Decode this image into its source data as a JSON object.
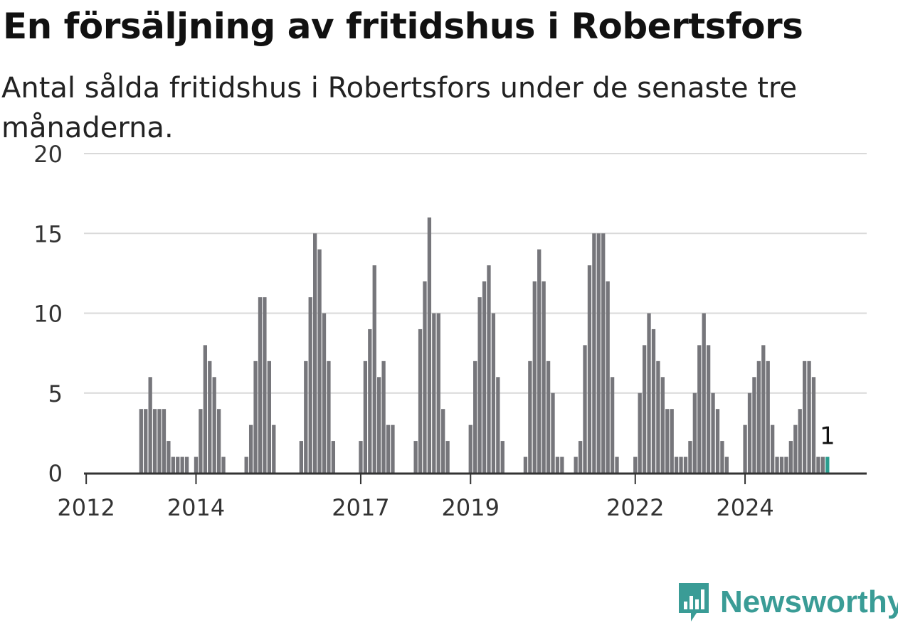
{
  "title": "En försäljning av fritidshus i Robertsfors",
  "subtitle": "Antal sålda fritidshus i Robertsfors under de senaste tre månaderna.",
  "brand": {
    "name": "Newsworthy",
    "icon": "newsworthy-logo-icon"
  },
  "colors": {
    "bar": "#76767b",
    "highlight": "#2a9d8f",
    "grid": "#d9d9d9",
    "axis": "#333333",
    "brand": "#3a9c96"
  },
  "chart_data": {
    "type": "bar",
    "frequency": "monthly",
    "x_tick_labels": [
      "2012",
      "2014",
      "2017",
      "2019",
      "2022",
      "2024"
    ],
    "y_ticks": [
      0,
      5,
      10,
      15,
      20
    ],
    "ylim": [
      0,
      20
    ],
    "grid": true,
    "highlight": {
      "label": "1",
      "value": 1
    },
    "series": [
      {
        "values": [
          0,
          0,
          0,
          0,
          0,
          0,
          0,
          0,
          0,
          0,
          0,
          0,
          4,
          4,
          6,
          4,
          4,
          4,
          2,
          1,
          1,
          1,
          1,
          0,
          1,
          4,
          8,
          7,
          6,
          4,
          1,
          0,
          0,
          0,
          0,
          1,
          3,
          7,
          11,
          11,
          7,
          3,
          0,
          0,
          0,
          0,
          0,
          2,
          7,
          11,
          15,
          14,
          10,
          7,
          2,
          0,
          0,
          0,
          0,
          0,
          2,
          7,
          9,
          13,
          6,
          7,
          3,
          3,
          0,
          0,
          0,
          0,
          2,
          9,
          12,
          16,
          10,
          10,
          4,
          2,
          0,
          0,
          0,
          0,
          3,
          7,
          11,
          12,
          13,
          10,
          6,
          2,
          0,
          0,
          0,
          0,
          1,
          7,
          12,
          14,
          12,
          7,
          5,
          1,
          1,
          0,
          0,
          1,
          2,
          8,
          13,
          15,
          15,
          15,
          12,
          6,
          1,
          0,
          0,
          0,
          1,
          5,
          8,
          10,
          9,
          7,
          6,
          4,
          4,
          1,
          1,
          1,
          2,
          5,
          8,
          10,
          8,
          5,
          4,
          2,
          1,
          0,
          0,
          0,
          3,
          5,
          6,
          7,
          8,
          7,
          3,
          1,
          1,
          1,
          2,
          3,
          4,
          7,
          7,
          6,
          1,
          1,
          1
        ]
      }
    ]
  }
}
